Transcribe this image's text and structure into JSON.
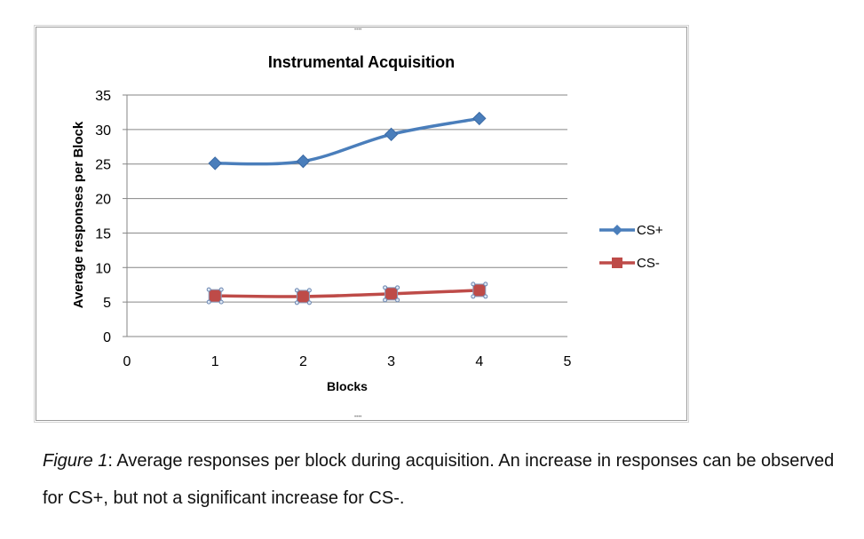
{
  "chart_data": {
    "type": "line",
    "title": "Instrumental Acquisition",
    "xlabel": "Blocks",
    "ylabel": "Average responses per Block",
    "x": [
      1,
      2,
      3,
      4
    ],
    "xlim": [
      0,
      5
    ],
    "ylim": [
      0,
      35
    ],
    "xticks": [
      "0",
      "1",
      "2",
      "3",
      "4",
      "5"
    ],
    "yticks": [
      "0",
      "5",
      "10",
      "15",
      "20",
      "25",
      "30",
      "35"
    ],
    "grid": "horizontal",
    "legend_position": "right",
    "series": [
      {
        "name": "CS+",
        "values": [
          25.1,
          25.4,
          29.3,
          31.6
        ],
        "color": "#4a7ebb",
        "marker": "diamond"
      },
      {
        "name": "CS-",
        "values": [
          5.9,
          5.8,
          6.2,
          6.7
        ],
        "color": "#be4b48",
        "marker": "square"
      }
    ]
  },
  "caption": {
    "label": "Figure 1",
    "text": ": Average responses per block during acquisition. An increase in responses can be observed for CS+, but not a significant increase for CS-."
  }
}
